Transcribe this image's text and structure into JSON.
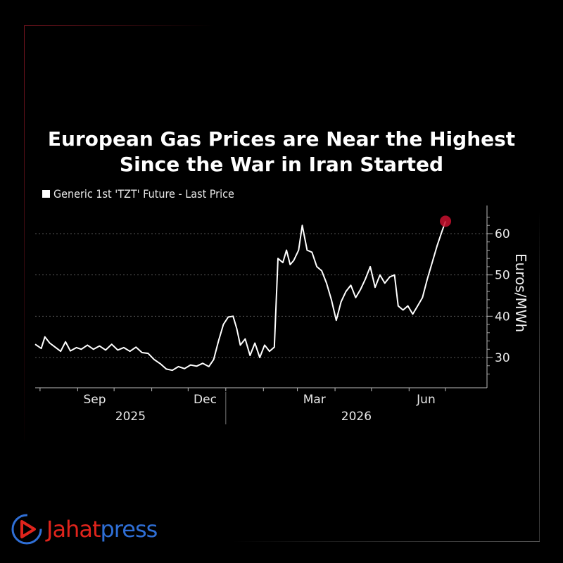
{
  "title_lines": [
    "European Gas Prices are Near the Highest",
    "Since the War in Iran Started"
  ],
  "legend": "Generic 1st 'TZT' Future - Last Price",
  "brand": {
    "part1": "Jahat",
    "part2": "press",
    "color1": "#e0241c",
    "color2": "#2f6fd6"
  },
  "colors": {
    "line": "#ffffff",
    "marker": "#c8102e",
    "grid": "#555555",
    "background": "#000000"
  },
  "chart_data": {
    "type": "line",
    "title": "European Gas Prices are Near the Highest Since the War in Iran Started",
    "legend": [
      "Generic 1st 'TZT' Future - Last Price"
    ],
    "ylabel": "Euros/MWh",
    "ylim": [
      24,
      66
    ],
    "yticks": [
      30,
      40,
      50,
      60
    ],
    "x_tick_labels": [
      "Sep",
      "Dec",
      "Mar",
      "Jun"
    ],
    "x_year_labels": [
      "2025",
      "2026"
    ],
    "x_range": [
      "2025-07-28",
      "2026-07-12"
    ],
    "grid": true,
    "legend_position": "top-left",
    "series": [
      {
        "name": "Generic 1st 'TZT' Future - Last Price",
        "points": [
          [
            "2025-07-28",
            33.2
          ],
          [
            "2025-08-02",
            32.2
          ],
          [
            "2025-08-05",
            35.0
          ],
          [
            "2025-08-09",
            33.5
          ],
          [
            "2025-08-13",
            32.6
          ],
          [
            "2025-08-18",
            31.5
          ],
          [
            "2025-08-22",
            33.8
          ],
          [
            "2025-08-26",
            31.6
          ],
          [
            "2025-08-31",
            32.4
          ],
          [
            "2025-09-04",
            32.0
          ],
          [
            "2025-09-09",
            33.0
          ],
          [
            "2025-09-14",
            32.0
          ],
          [
            "2025-09-19",
            32.8
          ],
          [
            "2025-09-24",
            31.8
          ],
          [
            "2025-09-29",
            33.2
          ],
          [
            "2025-10-04",
            31.8
          ],
          [
            "2025-10-09",
            32.4
          ],
          [
            "2025-10-14",
            31.5
          ],
          [
            "2025-10-19",
            32.5
          ],
          [
            "2025-10-24",
            31.2
          ],
          [
            "2025-10-29",
            31.0
          ],
          [
            "2025-11-03",
            29.5
          ],
          [
            "2025-11-08",
            28.5
          ],
          [
            "2025-11-13",
            27.2
          ],
          [
            "2025-11-18",
            26.9
          ],
          [
            "2025-11-23",
            27.8
          ],
          [
            "2025-11-28",
            27.3
          ],
          [
            "2025-12-03",
            28.2
          ],
          [
            "2025-12-08",
            27.9
          ],
          [
            "2025-12-13",
            28.6
          ],
          [
            "2025-12-18",
            27.8
          ],
          [
            "2025-12-22",
            29.5
          ],
          [
            "2025-12-26",
            34.0
          ],
          [
            "2025-12-30",
            38.0
          ],
          [
            "2026-01-03",
            39.8
          ],
          [
            "2026-01-07",
            40.0
          ],
          [
            "2026-01-10",
            37.0
          ],
          [
            "2026-01-13",
            33.0
          ],
          [
            "2026-01-17",
            34.5
          ],
          [
            "2026-01-21",
            30.5
          ],
          [
            "2026-01-25",
            33.5
          ],
          [
            "2026-01-29",
            30.0
          ],
          [
            "2026-02-02",
            33.0
          ],
          [
            "2026-02-06",
            31.5
          ],
          [
            "2026-02-10",
            32.5
          ],
          [
            "2026-02-13",
            54.0
          ],
          [
            "2026-02-17",
            53.0
          ],
          [
            "2026-02-20",
            56.0
          ],
          [
            "2026-02-23",
            52.5
          ],
          [
            "2026-02-26",
            53.5
          ],
          [
            "2026-03-02",
            56.0
          ],
          [
            "2026-03-05",
            62.0
          ],
          [
            "2026-03-09",
            56.0
          ],
          [
            "2026-03-13",
            55.5
          ],
          [
            "2026-03-17",
            52.0
          ],
          [
            "2026-03-21",
            51.0
          ],
          [
            "2026-03-25",
            48.0
          ],
          [
            "2026-03-29",
            44.0
          ],
          [
            "2026-04-02",
            39.0
          ],
          [
            "2026-04-06",
            43.5
          ],
          [
            "2026-04-10",
            46.0
          ],
          [
            "2026-04-14",
            47.5
          ],
          [
            "2026-04-18",
            44.5
          ],
          [
            "2026-04-22",
            46.5
          ],
          [
            "2026-04-26",
            49.0
          ],
          [
            "2026-04-30",
            52.0
          ],
          [
            "2026-05-04",
            47.0
          ],
          [
            "2026-05-08",
            50.0
          ],
          [
            "2026-05-12",
            48.0
          ],
          [
            "2026-05-16",
            49.5
          ],
          [
            "2026-05-20",
            50.0
          ],
          [
            "2026-05-23",
            42.5
          ],
          [
            "2026-05-27",
            41.5
          ],
          [
            "2026-05-31",
            42.5
          ],
          [
            "2026-06-04",
            40.5
          ],
          [
            "2026-06-08",
            42.5
          ],
          [
            "2026-06-12",
            44.5
          ],
          [
            "2026-06-16",
            49.0
          ],
          [
            "2026-06-20",
            53.0
          ],
          [
            "2026-06-24",
            57.0
          ],
          [
            "2026-06-28",
            60.5
          ],
          [
            "2026-07-01",
            63.0
          ]
        ]
      }
    ],
    "annotations": [
      {
        "type": "marker",
        "x": "2026-07-01",
        "y": 63.0
      }
    ]
  }
}
